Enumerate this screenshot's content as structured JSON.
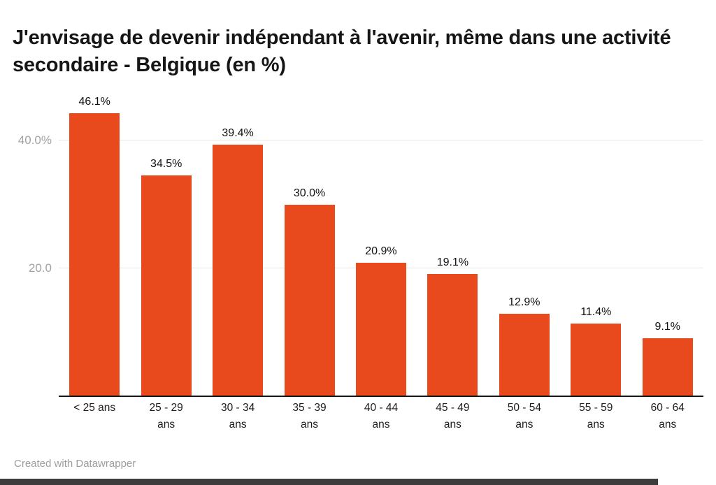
{
  "header": {
    "title": "J'envisage de devenir indépendant à l'avenir, même dans une activité secondaire - Belgique (en %)"
  },
  "footer": {
    "credit": "Created with Datawrapper"
  },
  "colors": {
    "bar": "#e8491d",
    "axis_text": "#a3a3a3",
    "gridline": "#e7e7e7",
    "baseline": "#161616"
  },
  "chart_data": {
    "type": "bar",
    "title": "J'envisage de devenir indépendant à l'avenir, même dans une activité secondaire - Belgique (en %)",
    "categories": [
      "< 25 ans",
      "25 - 29 ans",
      "30 - 34 ans",
      "35 - 39 ans",
      "40 - 44 ans",
      "45 - 49 ans",
      "50 - 54 ans",
      "55 - 59 ans",
      "60 - 64 ans"
    ],
    "values": [
      46.1,
      34.5,
      39.4,
      30.0,
      20.9,
      19.1,
      12.9,
      11.4,
      9.1
    ],
    "value_labels": [
      "46.1%",
      "34.5%",
      "39.4%",
      "30.0%",
      "20.9%",
      "19.1%",
      "12.9%",
      "11.4%",
      "9.1%"
    ],
    "xlabel": "",
    "ylabel": "",
    "unit": "%",
    "ylim": [
      0,
      47
    ],
    "yticks": [
      {
        "value": 20,
        "label": "20.0"
      },
      {
        "value": 40,
        "label": "40.0%"
      }
    ],
    "grid": true,
    "legend": "none",
    "bar_color": "#e8491d"
  }
}
